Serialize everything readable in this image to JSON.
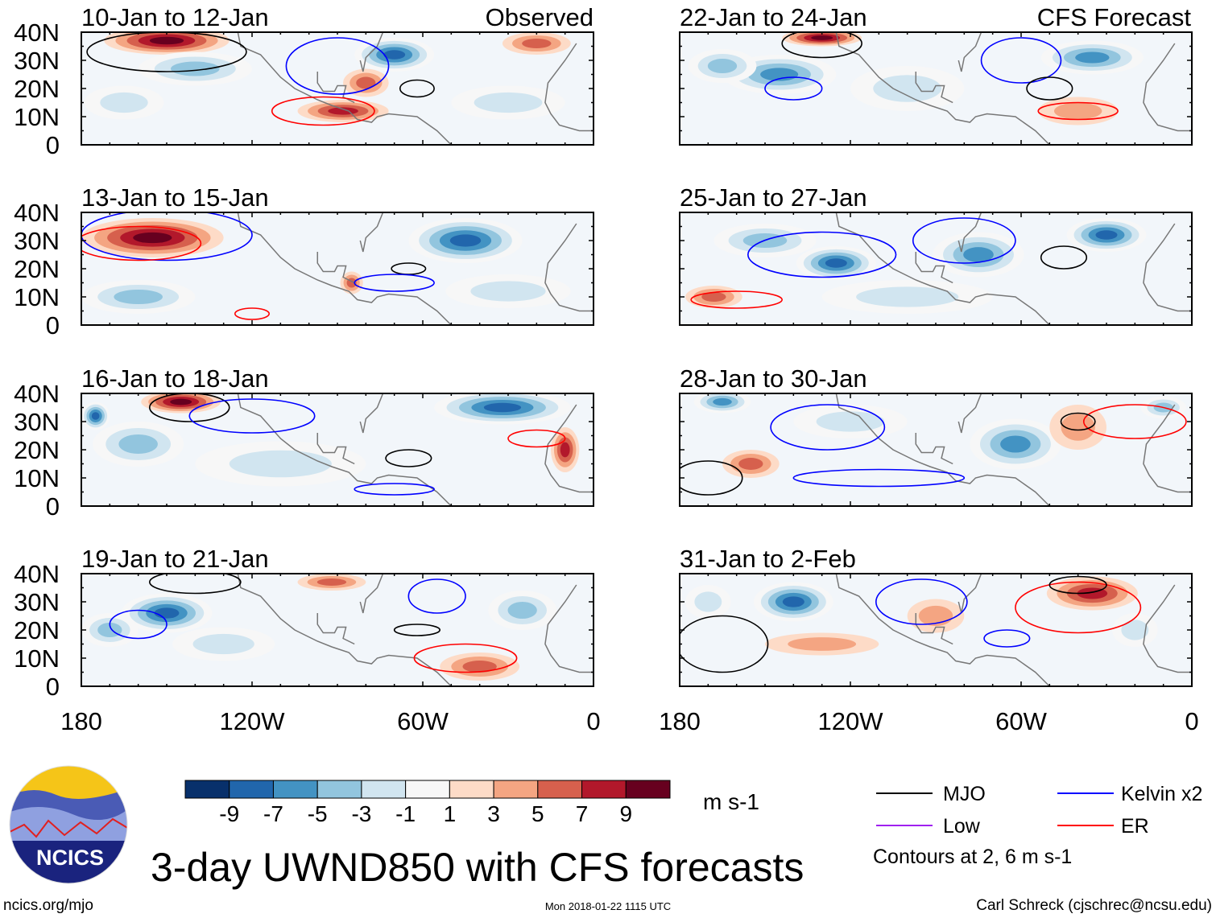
{
  "title": "3-day UWND850 with CFS forecasts",
  "footer": {
    "left": "ncics.org/mjo",
    "center": "Mon 2018-01-22 1115 UTC",
    "right": "Carl Schreck (cjschrec@ncsu.edu)"
  },
  "logo": {
    "text": "NCICS"
  },
  "column_labels": {
    "observed": "Observed",
    "forecast": "CFS Forecast"
  },
  "colorbar": {
    "colors": [
      "#08306b",
      "#2166ac",
      "#4393c3",
      "#92c5de",
      "#d1e5f0",
      "#f7f7f7",
      "#fddbc7",
      "#f4a582",
      "#d6604d",
      "#b2182b",
      "#67001f"
    ],
    "ticks": [
      "-9",
      "-7",
      "-5",
      "-3",
      "-1",
      "1",
      "3",
      "5",
      "7",
      "9"
    ],
    "units": "m s-1"
  },
  "legend": {
    "items": [
      {
        "label": "MJO",
        "color": "#000000"
      },
      {
        "label": "Kelvin x2",
        "color": "#0000ff"
      },
      {
        "label": "Low",
        "color": "#a020f0"
      },
      {
        "label": "ER",
        "color": "#ff0000"
      }
    ],
    "note": "Contours at 2, 6 m s-1"
  },
  "chart_data": {
    "type": "heatmap",
    "variable": "850-hPa zonal wind anomaly",
    "units": "m s-1",
    "lon_range": [
      -180,
      0
    ],
    "lat_range": [
      0,
      40
    ],
    "lat_ticks": [
      "0",
      "10N",
      "20N",
      "30N",
      "40N"
    ],
    "lon_ticks": [
      "180",
      "120W",
      "60W",
      "0"
    ],
    "panels": [
      {
        "title": "10-Jan to 12-Jan",
        "source": "observed",
        "anomalies": [
          [
            -150,
            37,
            22,
            5,
            9
          ],
          [
            -70,
            32,
            14,
            6,
            -9
          ],
          [
            -80,
            22,
            8,
            5,
            5
          ],
          [
            -88,
            12,
            16,
            4,
            7
          ],
          [
            -140,
            27,
            20,
            6,
            -5
          ],
          [
            -20,
            36,
            12,
            4,
            5
          ],
          [
            -30,
            15,
            20,
            6,
            -3
          ],
          [
            -165,
            15,
            14,
            6,
            -3
          ]
        ],
        "contours": [
          [
            "MJO",
            -150,
            33,
            28,
            7
          ],
          [
            "Kelvin",
            -90,
            28,
            18,
            10
          ],
          [
            "ER",
            -95,
            12,
            18,
            5
          ],
          [
            "MJO",
            -62,
            20,
            6,
            3
          ]
        ]
      },
      {
        "title": "13-Jan to 15-Jan",
        "source": "observed",
        "anomalies": [
          [
            -155,
            31,
            25,
            7,
            9
          ],
          [
            -45,
            30,
            20,
            8,
            -9
          ],
          [
            -30,
            12,
            22,
            6,
            -3
          ],
          [
            -160,
            10,
            20,
            6,
            -5
          ],
          [
            -85,
            15,
            4,
            4,
            5
          ]
        ],
        "contours": [
          [
            "Kelvin",
            -150,
            32,
            30,
            9
          ],
          [
            "ER",
            -160,
            29,
            22,
            6
          ],
          [
            "MJO",
            -65,
            20,
            6,
            2
          ],
          [
            "Kelvin",
            -70,
            15,
            14,
            3
          ],
          [
            "ER",
            -120,
            4,
            6,
            2
          ]
        ]
      },
      {
        "title": "16-Jan to 18-Jan",
        "source": "observed",
        "anomalies": [
          [
            -145,
            37,
            14,
            4,
            9
          ],
          [
            -175,
            32,
            5,
            5,
            -9
          ],
          [
            -32,
            35,
            24,
            6,
            -9
          ],
          [
            -10,
            20,
            5,
            8,
            7
          ],
          [
            -160,
            22,
            16,
            8,
            -5
          ],
          [
            -110,
            15,
            30,
            8,
            -3
          ]
        ],
        "contours": [
          [
            "MJO",
            -142,
            35,
            14,
            5
          ],
          [
            "Kelvin",
            -120,
            32,
            22,
            6
          ],
          [
            "MJO",
            -65,
            17,
            8,
            3
          ],
          [
            "ER",
            -20,
            24,
            10,
            3
          ],
          [
            "Kelvin",
            -70,
            6,
            14,
            2
          ]
        ]
      },
      {
        "title": "19-Jan to 21-Jan",
        "source": "observed",
        "anomalies": [
          [
            -150,
            26,
            16,
            7,
            -9
          ],
          [
            -92,
            37,
            12,
            3,
            5
          ],
          [
            -40,
            7,
            14,
            5,
            5
          ],
          [
            -25,
            27,
            12,
            7,
            -5
          ],
          [
            -170,
            20,
            10,
            6,
            -5
          ],
          [
            -130,
            15,
            18,
            6,
            -3
          ]
        ],
        "contours": [
          [
            "MJO",
            -140,
            37,
            16,
            4
          ],
          [
            "Kelvin",
            -160,
            22,
            10,
            5
          ],
          [
            "ER",
            -45,
            10,
            18,
            5
          ],
          [
            "MJO",
            -62,
            20,
            8,
            2
          ],
          [
            "Kelvin",
            -55,
            32,
            10,
            6
          ]
        ]
      },
      {
        "title": "22-Jan to 24-Jan",
        "source": "forecast",
        "anomalies": [
          [
            -130,
            38,
            14,
            3,
            9
          ],
          [
            -145,
            25,
            20,
            7,
            -7
          ],
          [
            -35,
            31,
            18,
            6,
            -7
          ],
          [
            -165,
            28,
            12,
            6,
            -5
          ],
          [
            -100,
            20,
            20,
            8,
            -3
          ],
          [
            -40,
            12,
            14,
            5,
            3
          ]
        ],
        "contours": [
          [
            "MJO",
            -130,
            36,
            14,
            5
          ],
          [
            "Kelvin",
            -60,
            30,
            14,
            8
          ],
          [
            "ER",
            -40,
            12,
            14,
            3
          ],
          [
            "MJO",
            -50,
            20,
            8,
            4
          ],
          [
            "Kelvin",
            -140,
            20,
            10,
            4
          ]
        ]
      },
      {
        "title": "25-Jan to 27-Jan",
        "source": "forecast",
        "anomalies": [
          [
            -125,
            22,
            14,
            6,
            -9
          ],
          [
            -30,
            32,
            14,
            6,
            -9
          ],
          [
            -75,
            25,
            16,
            8,
            -7
          ],
          [
            -168,
            10,
            10,
            4,
            5
          ],
          [
            -150,
            30,
            18,
            6,
            -5
          ],
          [
            -100,
            10,
            30,
            6,
            -3
          ]
        ],
        "contours": [
          [
            "Kelvin",
            -130,
            25,
            26,
            8
          ],
          [
            "MJO",
            -45,
            24,
            8,
            4
          ],
          [
            "ER",
            -160,
            9,
            16,
            3
          ],
          [
            "Kelvin",
            -80,
            30,
            18,
            8
          ]
        ]
      },
      {
        "title": "28-Jan to 30-Jan",
        "source": "forecast",
        "anomalies": [
          [
            -165,
            37,
            10,
            4,
            -7
          ],
          [
            -62,
            22,
            16,
            9,
            -7
          ],
          [
            -155,
            15,
            10,
            5,
            5
          ],
          [
            -40,
            28,
            10,
            8,
            3
          ],
          [
            -120,
            30,
            20,
            6,
            -3
          ],
          [
            -10,
            35,
            8,
            4,
            -5
          ]
        ],
        "contours": [
          [
            "Kelvin",
            -128,
            28,
            20,
            8
          ],
          [
            "MJO",
            -170,
            10,
            12,
            6
          ],
          [
            "ER",
            -20,
            30,
            18,
            6
          ],
          [
            "MJO",
            -40,
            30,
            6,
            3
          ],
          [
            "Kelvin",
            -110,
            10,
            30,
            3
          ]
        ]
      },
      {
        "title": "31-Jan to 2-Feb",
        "source": "forecast",
        "anomalies": [
          [
            -140,
            30,
            14,
            7,
            -9
          ],
          [
            -35,
            33,
            16,
            6,
            7
          ],
          [
            -130,
            15,
            20,
            4,
            3
          ],
          [
            -90,
            25,
            10,
            6,
            3
          ],
          [
            -20,
            20,
            8,
            6,
            -3
          ],
          [
            -170,
            30,
            8,
            6,
            -3
          ]
        ],
        "contours": [
          [
            "Kelvin",
            -95,
            30,
            16,
            8
          ],
          [
            "ER",
            -40,
            28,
            22,
            9
          ],
          [
            "MJO",
            -40,
            36,
            10,
            3
          ],
          [
            "MJO",
            -165,
            15,
            16,
            10
          ],
          [
            "Kelvin",
            -65,
            17,
            8,
            3
          ]
        ]
      }
    ]
  }
}
